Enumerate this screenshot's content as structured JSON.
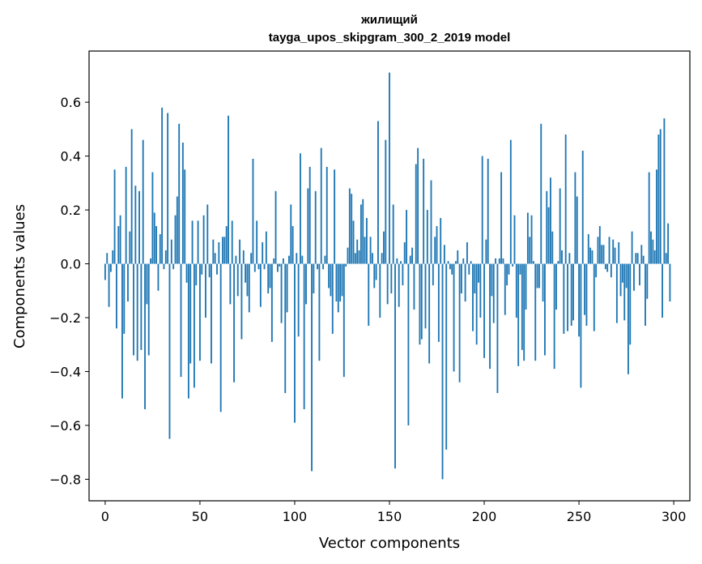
{
  "chart_data": {
    "type": "bar",
    "title": "жилищий",
    "subtitle": "tayga_upos_skipgram_300_2_2019 model",
    "xlabel": "Vector components",
    "ylabel": "Components values",
    "xlim": [
      -8.5,
      308.5
    ],
    "ylim": [
      -0.88,
      0.79
    ],
    "xticks": [
      0,
      50,
      100,
      150,
      200,
      250,
      300
    ],
    "xtick_labels": [
      "0",
      "50",
      "100",
      "150",
      "200",
      "250",
      "300"
    ],
    "yticks": [
      -0.8,
      -0.6,
      -0.4,
      -0.2,
      0.0,
      0.2,
      0.4,
      0.6
    ],
    "ytick_labels": [
      "−0.8",
      "−0.6",
      "−0.4",
      "−0.2",
      "0.0",
      "0.2",
      "0.4",
      "0.6"
    ],
    "grid": false,
    "bar_color": "#1f77b4",
    "values": [
      -0.06,
      0.04,
      -0.16,
      -0.03,
      0.05,
      0.35,
      -0.24,
      0.14,
      0.18,
      -0.5,
      -0.26,
      0.36,
      -0.14,
      0.12,
      0.5,
      -0.34,
      0.29,
      -0.36,
      0.27,
      -0.32,
      0.46,
      -0.54,
      -0.15,
      -0.34,
      0.02,
      0.34,
      0.19,
      0.14,
      -0.1,
      0.11,
      0.58,
      -0.02,
      0.05,
      0.56,
      -0.65,
      0.09,
      -0.02,
      0.18,
      0.25,
      0.52,
      -0.42,
      0.45,
      0.35,
      -0.07,
      -0.5,
      -0.37,
      0.16,
      -0.46,
      -0.08,
      0.16,
      -0.36,
      -0.04,
      0.18,
      -0.2,
      0.22,
      -0.05,
      -0.37,
      0.09,
      0.04,
      -0.04,
      0.08,
      -0.55,
      0.1,
      0.1,
      0.14,
      0.55,
      -0.15,
      0.16,
      -0.44,
      0.03,
      -0.12,
      0.09,
      -0.28,
      0.05,
      -0.07,
      -0.12,
      -0.18,
      0.04,
      0.39,
      -0.03,
      0.16,
      -0.02,
      -0.16,
      0.08,
      -0.02,
      0.12,
      -0.11,
      -0.09,
      -0.29,
      0.02,
      0.27,
      -0.03,
      -0.01,
      -0.22,
      0.02,
      -0.48,
      -0.18,
      0.03,
      0.22,
      0.14,
      -0.59,
      0.04,
      -0.27,
      0.41,
      0.03,
      -0.54,
      -0.15,
      0.28,
      0.36,
      -0.77,
      -0.11,
      0.27,
      -0.02,
      -0.36,
      0.43,
      -0.02,
      0.03,
      0.36,
      -0.09,
      -0.12,
      -0.26,
      0.35,
      -0.14,
      -0.18,
      -0.14,
      -0.12,
      -0.42,
      -0.01,
      0.06,
      0.28,
      0.26,
      0.16,
      0.04,
      0.09,
      0.05,
      0.22,
      0.24,
      0.1,
      0.17,
      -0.23,
      0.1,
      0.04,
      -0.09,
      -0.06,
      0.53,
      -0.2,
      0.04,
      0.12,
      0.46,
      -0.15,
      0.71,
      -0.11,
      0.22,
      -0.76,
      0.02,
      -0.16,
      0.01,
      -0.08,
      0.08,
      0.2,
      -0.6,
      0.03,
      0.06,
      -0.17,
      0.37,
      0.43,
      -0.3,
      -0.28,
      0.39,
      -0.24,
      0.2,
      -0.37,
      0.31,
      -0.08,
      0.1,
      0.14,
      -0.29,
      0.17,
      -0.8,
      0.07,
      -0.69,
      0.01,
      -0.02,
      -0.04,
      -0.4,
      0.01,
      0.05,
      -0.44,
      -0.11,
      0.02,
      -0.14,
      0.08,
      -0.04,
      0.01,
      -0.25,
      -0.11,
      -0.3,
      -0.07,
      -0.2,
      0.4,
      -0.35,
      0.09,
      0.39,
      -0.39,
      -0.12,
      -0.22,
      0.02,
      -0.48,
      0.02,
      0.34,
      0.02,
      -0.19,
      -0.08,
      -0.04,
      0.46,
      -0.01,
      0.18,
      -0.2,
      -0.38,
      -0.04,
      -0.32,
      -0.36,
      -0.17,
      0.19,
      0.1,
      0.18,
      0.01,
      -0.36,
      -0.09,
      -0.09,
      0.52,
      -0.14,
      -0.34,
      0.27,
      0.21,
      0.32,
      0.12,
      -0.39,
      -0.17,
      0.01,
      0.28,
      0.05,
      -0.26,
      0.48,
      -0.25,
      0.04,
      -0.23,
      -0.21,
      0.34,
      0.25,
      -0.27,
      -0.46,
      0.42,
      -0.19,
      -0.23,
      0.11,
      0.06,
      0.05,
      -0.25,
      -0.05,
      0.1,
      0.14,
      0.07,
      0.07,
      -0.02,
      -0.03,
      0.1,
      -0.05,
      0.09,
      0.06,
      -0.22,
      0.08,
      -0.12,
      -0.07,
      -0.21,
      -0.09,
      -0.41,
      -0.3,
      0.12,
      -0.1,
      0.04,
      0.04,
      -0.08,
      0.07,
      0.03,
      -0.23,
      -0.13,
      0.34,
      0.12,
      0.09,
      0.05,
      0.35,
      0.48,
      0.5,
      -0.2,
      0.54,
      0.04,
      0.15,
      -0.14
    ]
  }
}
